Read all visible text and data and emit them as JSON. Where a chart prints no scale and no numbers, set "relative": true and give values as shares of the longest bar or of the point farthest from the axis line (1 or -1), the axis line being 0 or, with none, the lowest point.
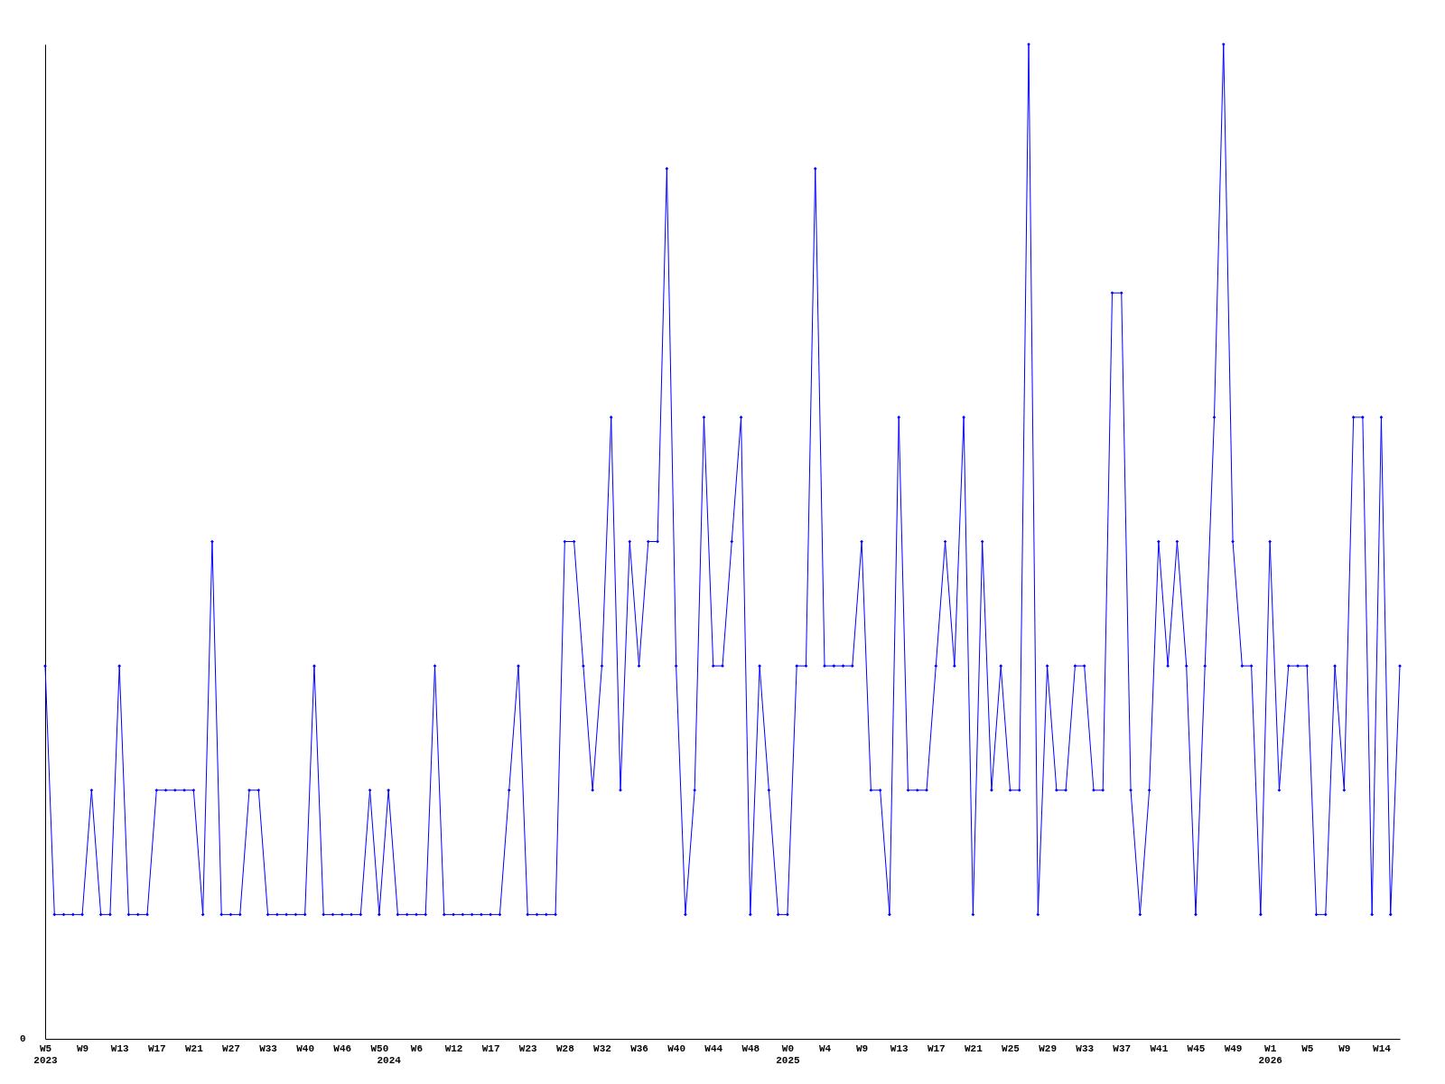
{
  "chart_data": {
    "type": "line",
    "relative": true,
    "color": "#0000ff",
    "marker": "diamond",
    "line_style": "solid",
    "grid": false,
    "annotations": [
      "0"
    ],
    "categories": [
      "W5\n2023",
      null,
      null,
      null,
      "W9",
      null,
      null,
      null,
      "W13",
      null,
      null,
      null,
      "W17",
      null,
      null,
      null,
      "W21",
      null,
      null,
      null,
      "W27",
      null,
      null,
      null,
      "W33",
      null,
      null,
      null,
      "W40",
      null,
      null,
      null,
      "W46",
      null,
      null,
      null,
      "W50",
      "\n2024",
      null,
      null,
      "W6",
      null,
      null,
      null,
      "W12",
      null,
      null,
      null,
      "W17",
      null,
      null,
      null,
      "W23",
      null,
      null,
      null,
      "W28",
      null,
      null,
      null,
      "W32",
      null,
      null,
      null,
      "W36",
      null,
      null,
      null,
      "W40",
      null,
      null,
      null,
      "W44",
      null,
      null,
      null,
      "W48",
      null,
      null,
      null,
      "W0\n2025",
      null,
      null,
      null,
      "W4",
      null,
      null,
      null,
      "W9",
      null,
      null,
      null,
      "W13",
      null,
      null,
      null,
      "W17",
      null,
      null,
      null,
      "W21",
      null,
      null,
      null,
      "W25",
      null,
      null,
      null,
      "W29",
      null,
      null,
      null,
      "W33",
      null,
      null,
      null,
      "W37",
      null,
      null,
      null,
      "W41",
      null,
      null,
      null,
      "W45",
      null,
      null,
      null,
      "W49",
      null,
      null,
      null,
      "W1\n2026",
      null,
      null,
      null,
      "W5",
      null,
      null,
      null,
      "W9",
      null,
      null,
      null,
      "W14",
      null,
      null
    ],
    "values": [
      0.375,
      0.125,
      0.125,
      0.125,
      0.125,
      0.25,
      0.125,
      0.125,
      0.375,
      0.125,
      0.125,
      0.125,
      0.25,
      0.25,
      0.25,
      0.25,
      0.25,
      0.125,
      0.5,
      0.125,
      0.125,
      0.125,
      0.25,
      0.25,
      0.125,
      0.125,
      0.125,
      0.125,
      0.125,
      0.375,
      0.125,
      0.125,
      0.125,
      0.125,
      0.125,
      0.25,
      0.125,
      0.25,
      0.125,
      0.125,
      0.125,
      0.125,
      0.375,
      0.125,
      0.125,
      0.125,
      0.125,
      0.125,
      0.125,
      0.125,
      0.25,
      0.375,
      0.125,
      0.125,
      0.125,
      0.125,
      0.5,
      0.5,
      0.375,
      0.25,
      0.375,
      0.625,
      0.25,
      0.5,
      0.375,
      0.5,
      0.5,
      0.875,
      0.375,
      0.125,
      0.25,
      0.625,
      0.375,
      0.375,
      0.5,
      0.625,
      0.125,
      0.375,
      0.25,
      0.125,
      0.125,
      0.375,
      0.375,
      0.875,
      0.375,
      0.375,
      0.375,
      0.375,
      0.5,
      0.25,
      0.25,
      0.125,
      0.625,
      0.25,
      0.25,
      0.25,
      0.375,
      0.5,
      0.375,
      0.625,
      0.125,
      0.5,
      0.25,
      0.375,
      0.25,
      0.25,
      1,
      0.125,
      0.375,
      0.25,
      0.25,
      0.375,
      0.375,
      0.25,
      0.25,
      0.75,
      0.75,
      0.25,
      0.125,
      0.25,
      0.5,
      0.375,
      0.5,
      0.375,
      0.125,
      0.375,
      0.625,
      1,
      0.5,
      0.375,
      0.375,
      0.125,
      0.5,
      0.25,
      0.375,
      0.375,
      0.375,
      0.125,
      0.125,
      0.375,
      0.25,
      0.625,
      0.625,
      0.125,
      0.625,
      0.125,
      0.375
    ]
  }
}
